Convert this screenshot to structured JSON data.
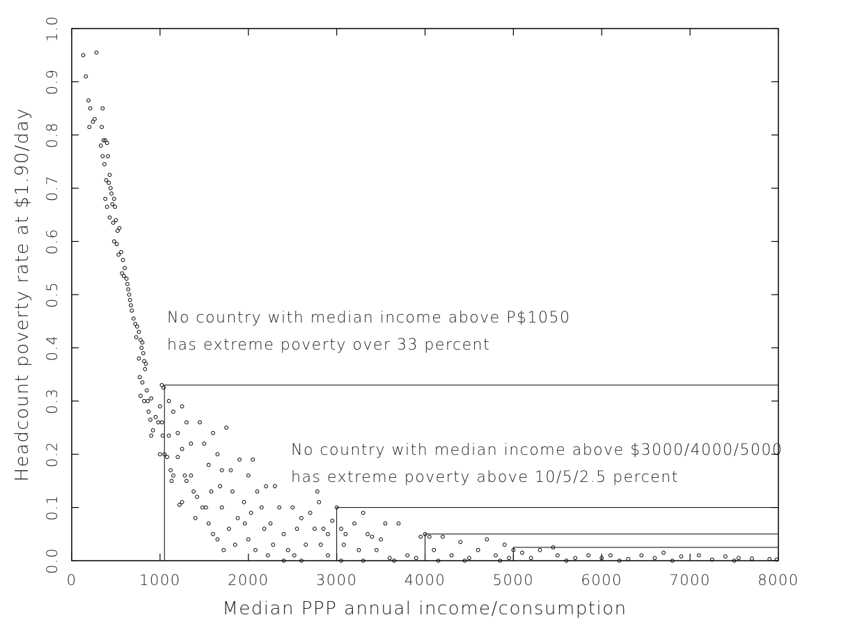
{
  "chart_data": {
    "type": "scatter",
    "xlabel": "Median PPP annual income/consumption",
    "ylabel": "Headcount poverty rate at $1.90/day",
    "xlim": [
      0,
      8000
    ],
    "ylim": [
      0,
      1
    ],
    "xticks": [
      0,
      1000,
      2000,
      3000,
      4000,
      5000,
      6000,
      7000,
      8000
    ],
    "yticks": [
      {
        "value": 0,
        "label": "0.0"
      },
      0.1,
      0.2,
      0.3,
      0.4,
      0.5,
      0.6,
      0.7,
      0.8,
      0.9,
      {
        "value": 1,
        "label": "1.0"
      }
    ],
    "color": "#000000",
    "annotations": [
      [
        "No country with median income above P$1050",
        "has extreme poverty over 33 percent"
      ],
      [
        "No country with median income above $3000/4000/5000",
        "has extreme poverty above 10/5/2.5 percent"
      ]
    ],
    "reference_boxes": [
      {
        "x": 1050,
        "y": 0.33
      },
      {
        "x": 3000,
        "y": 0.1
      },
      {
        "x": 4000,
        "y": 0.05
      },
      {
        "x": 5000,
        "y": 0.025
      }
    ],
    "x": [
      130,
      160,
      280,
      190,
      200,
      210,
      240,
      260,
      350,
      340,
      330,
      360,
      380,
      400,
      410,
      350,
      370,
      430,
      420,
      390,
      440,
      380,
      450,
      460,
      400,
      480,
      490,
      430,
      470,
      500,
      520,
      540,
      480,
      510,
      530,
      560,
      580,
      600,
      570,
      590,
      620,
      630,
      640,
      650,
      660,
      670,
      680,
      700,
      720,
      740,
      760,
      730,
      780,
      800,
      790,
      810,
      760,
      820,
      840,
      830,
      770,
      800,
      850,
      780,
      820,
      860,
      900,
      870,
      890,
      920,
      900,
      950,
      980,
      1000,
      1020,
      1040,
      1020,
      1030,
      1000,
      1050,
      1080,
      1100,
      1150,
      1250,
      1100,
      1200,
      1120,
      1130,
      1150,
      1200,
      1250,
      1300,
      1350,
      1280,
      1300,
      1220,
      1250,
      1350,
      1380,
      1400,
      1420,
      1450,
      1500,
      1550,
      1480,
      1520,
      1600,
      1580,
      1550,
      1600,
      1650,
      1700,
      1750,
      1680,
      1700,
      1650,
      1720,
      1800,
      1820,
      1780,
      1850,
      1900,
      1950,
      1880,
      1960,
      2000,
      2050,
      2030,
      2000,
      2080,
      2100,
      2150,
      2200,
      2180,
      2220,
      2250,
      2300,
      2280,
      2350,
      2400,
      2450,
      2500,
      2550,
      2520,
      2600,
      2650,
      2700,
      2750,
      2780,
      2800,
      2820,
      2850,
      2900,
      2900,
      2950,
      3000,
      3050,
      3080,
      3100,
      3200,
      3250,
      3300,
      3350,
      3400,
      3450,
      3500,
      3550,
      3600,
      3700,
      3800,
      3900,
      3950,
      4000,
      4050,
      4100,
      4200,
      4300,
      4400,
      4500,
      4600,
      4700,
      4800,
      4900,
      4950,
      5000,
      5100,
      5200,
      5300,
      5450,
      5500,
      5700,
      5850,
      6000,
      6100,
      6300,
      6450,
      6600,
      6700,
      6900,
      7100,
      7250,
      7400,
      7550,
      7700,
      7900,
      7980,
      2400,
      2600,
      3050,
      3300,
      3650,
      4150,
      4450,
      4850,
      5600,
      6200,
      6800,
      7500
    ],
    "values": [
      0.95,
      0.91,
      0.955,
      0.865,
      0.815,
      0.85,
      0.825,
      0.83,
      0.85,
      0.815,
      0.78,
      0.79,
      0.79,
      0.785,
      0.76,
      0.76,
      0.745,
      0.725,
      0.71,
      0.715,
      0.7,
      0.68,
      0.69,
      0.67,
      0.665,
      0.68,
      0.665,
      0.645,
      0.635,
      0.64,
      0.62,
      0.625,
      0.6,
      0.595,
      0.575,
      0.58,
      0.565,
      0.55,
      0.54,
      0.535,
      0.53,
      0.52,
      0.51,
      0.5,
      0.49,
      0.48,
      0.47,
      0.455,
      0.445,
      0.44,
      0.43,
      0.42,
      0.415,
      0.41,
      0.4,
      0.39,
      0.38,
      0.375,
      0.37,
      0.36,
      0.345,
      0.335,
      0.32,
      0.31,
      0.3,
      0.3,
      0.305,
      0.28,
      0.265,
      0.245,
      0.235,
      0.27,
      0.26,
      0.29,
      0.33,
      0.325,
      0.26,
      0.235,
      0.2,
      0.2,
      0.195,
      0.3,
      0.28,
      0.29,
      0.235,
      0.24,
      0.17,
      0.15,
      0.16,
      0.195,
      0.21,
      0.26,
      0.22,
      0.16,
      0.15,
      0.105,
      0.11,
      0.16,
      0.13,
      0.08,
      0.12,
      0.26,
      0.22,
      0.18,
      0.1,
      0.1,
      0.24,
      0.13,
      0.07,
      0.05,
      0.2,
      0.17,
      0.25,
      0.14,
      0.1,
      0.04,
      0.02,
      0.17,
      0.13,
      0.06,
      0.03,
      0.19,
      0.11,
      0.08,
      0.07,
      0.16,
      0.19,
      0.09,
      0.04,
      0.02,
      0.13,
      0.1,
      0.14,
      0.06,
      0.01,
      0.07,
      0.14,
      0.03,
      0.1,
      0.05,
      0.02,
      0.1,
      0.06,
      0.01,
      0.08,
      0.03,
      0.09,
      0.06,
      0.13,
      0.11,
      0.03,
      0.06,
      0.05,
      0.01,
      0.075,
      0.1,
      0.06,
      0.03,
      0.05,
      0.07,
      0.02,
      0.09,
      0.05,
      0.045,
      0.02,
      0.04,
      0.07,
      0.005,
      0.07,
      0.01,
      0.005,
      0.045,
      0.05,
      0.045,
      0.02,
      0.045,
      0.01,
      0.035,
      0.005,
      0.02,
      0.04,
      0.01,
      0.03,
      0.005,
      0.02,
      0.015,
      0.005,
      0.02,
      0.025,
      0.01,
      0.005,
      0.01,
      0.005,
      0.01,
      0.003,
      0.01,
      0.005,
      0.015,
      0.008,
      0.01,
      0.002,
      0.008,
      0.005,
      0.004,
      0.003,
      0.002,
      0,
      0,
      0,
      0,
      0,
      0,
      0,
      0,
      0,
      0,
      0,
      0
    ]
  }
}
